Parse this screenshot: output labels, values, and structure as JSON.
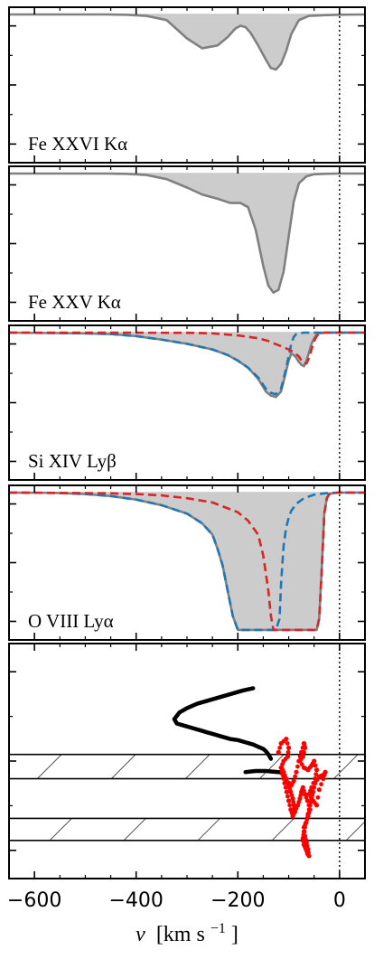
{
  "chart_data": {
    "type": "line",
    "xlabel_var": "v",
    "xlabel_unit": "[km s",
    "xlabel_exp": "−1",
    "xlabel_close": "]",
    "xlim": [
      -650,
      50
    ],
    "xticks": [
      -600,
      -400,
      -200,
      0
    ],
    "xtick_labels": [
      "−600",
      "−400",
      "−200",
      "0"
    ],
    "reference_line_x": 0,
    "colors": {
      "total": "#808080",
      "fill": "#cccccc",
      "red": "#d62728",
      "blue": "#1f77b4",
      "trajectory_black": "#000000",
      "trajectory_red": "#ff0000"
    },
    "panels": [
      {
        "label": "Fe XXVI Kα",
        "ylim": [
          0,
          1
        ],
        "series": [
          {
            "style": "solid-gray",
            "x": [
              -650,
              -520,
              -460,
              -420,
              -380,
              -340,
              -300,
              -270,
              -240,
              -220,
              -205,
              -195,
              -185,
              -175,
              -160,
              -145,
              -135,
              -125,
              -115,
              -105,
              -95,
              -80,
              -60,
              -30,
              0,
              50
            ],
            "y": [
              1,
              1,
              1,
              0.998,
              0.99,
              0.96,
              0.83,
              0.76,
              0.78,
              0.84,
              0.9,
              0.92,
              0.91,
              0.87,
              0.78,
              0.68,
              0.62,
              0.61,
              0.65,
              0.74,
              0.86,
              0.96,
              0.99,
              0.995,
              0.998,
              1
            ]
          }
        ]
      },
      {
        "label": "Fe XXV Kα",
        "ylim": [
          0,
          1
        ],
        "series": [
          {
            "style": "solid-gray",
            "x": [
              -650,
              -460,
              -420,
              -380,
              -340,
              -300,
              -270,
              -240,
              -215,
              -195,
              -180,
              -165,
              -150,
              -140,
              -130,
              -120,
              -110,
              -100,
              -90,
              -80,
              -65,
              -50,
              -30,
              0,
              50
            ],
            "y": [
              1,
              1,
              0.998,
              0.99,
              0.96,
              0.9,
              0.85,
              0.82,
              0.79,
              0.79,
              0.76,
              0.6,
              0.34,
              0.2,
              0.15,
              0.17,
              0.3,
              0.55,
              0.8,
              0.93,
              0.98,
              0.995,
              0.998,
              1,
              1
            ]
          }
        ]
      },
      {
        "label": "Si XIV Lyβ",
        "ylim": [
          0,
          1
        ],
        "series": [
          {
            "style": "solid-gray",
            "x": [
              -650,
              -500,
              -450,
              -400,
              -350,
              -300,
              -250,
              -220,
              -200,
              -180,
              -160,
              -145,
              -135,
              -125,
              -115,
              -108,
              -100,
              -95,
              -90,
              -85,
              -80,
              -75,
              -70,
              -65,
              -60,
              -55,
              -50,
              -45,
              -40,
              -30,
              -15,
              0,
              50
            ],
            "y": [
              1,
              0.995,
              0.99,
              0.975,
              0.95,
              0.92,
              0.88,
              0.84,
              0.8,
              0.75,
              0.67,
              0.58,
              0.55,
              0.54,
              0.58,
              0.68,
              0.8,
              0.85,
              0.84,
              0.82,
              0.79,
              0.77,
              0.76,
              0.8,
              0.86,
              0.92,
              0.96,
              0.985,
              0.995,
              1,
              1,
              1,
              1
            ]
          },
          {
            "style": "dashed-blue",
            "x": [
              -650,
              -500,
              -450,
              -400,
              -350,
              -300,
              -250,
              -220,
              -200,
              -180,
              -160,
              -145,
              -135,
              -125,
              -115,
              -108,
              -100,
              -95,
              -90,
              -85,
              -80,
              -70,
              -50,
              0,
              50
            ],
            "y": [
              1,
              0.995,
              0.99,
              0.975,
              0.95,
              0.92,
              0.88,
              0.84,
              0.8,
              0.75,
              0.68,
              0.6,
              0.57,
              0.56,
              0.6,
              0.7,
              0.83,
              0.92,
              0.97,
              0.99,
              0.995,
              1,
              1,
              1,
              1
            ]
          },
          {
            "style": "dashed-red",
            "x": [
              -650,
              -300,
              -250,
              -200,
              -160,
              -140,
              -120,
              -100,
              -90,
              -80,
              -75,
              -70,
              -65,
              -60,
              -55,
              -50,
              -45,
              -40,
              -30,
              -15,
              0,
              50
            ],
            "y": [
              1,
              0.999,
              0.995,
              0.98,
              0.96,
              0.94,
              0.91,
              0.88,
              0.86,
              0.83,
              0.8,
              0.78,
              0.78,
              0.82,
              0.88,
              0.94,
              0.975,
              0.99,
              1,
              1,
              1,
              1
            ]
          }
        ]
      },
      {
        "label": "O VIII Lyα",
        "ylim": [
          0,
          1
        ],
        "series": [
          {
            "style": "solid-gray",
            "x": [
              -650,
              -560,
              -500,
              -450,
              -400,
              -350,
              -300,
              -270,
              -250,
              -240,
              -230,
              -220,
              -210,
              -200,
              -150,
              -100,
              -60,
              -45,
              -40,
              -35,
              -30,
              -25,
              -20,
              -10,
              0,
              20,
              50
            ],
            "y": [
              1,
              0.998,
              0.99,
              0.975,
              0.95,
              0.91,
              0.85,
              0.78,
              0.7,
              0.6,
              0.48,
              0.3,
              0.12,
              0.02,
              0.02,
              0.02,
              0.02,
              0.02,
              0.1,
              0.45,
              0.85,
              0.96,
              0.99,
              0.998,
              1,
              1,
              1
            ]
          },
          {
            "style": "dashed-blue",
            "x": [
              -650,
              -560,
              -500,
              -450,
              -400,
              -350,
              -300,
              -270,
              -250,
              -240,
              -230,
              -220,
              -210,
              -200,
              -150,
              -125,
              -118,
              -115,
              -110,
              -105,
              -100,
              -95,
              -85,
              -70,
              -50,
              -30,
              0,
              50
            ],
            "y": [
              1,
              0.998,
              0.99,
              0.975,
              0.95,
              0.91,
              0.85,
              0.78,
              0.7,
              0.6,
              0.48,
              0.3,
              0.12,
              0.02,
              0.02,
              0.02,
              0.1,
              0.35,
              0.62,
              0.75,
              0.82,
              0.87,
              0.92,
              0.96,
              0.985,
              0.995,
              1,
              1
            ]
          },
          {
            "style": "dashed-red",
            "x": [
              -650,
              -450,
              -400,
              -350,
              -300,
              -250,
              -200,
              -180,
              -160,
              -150,
              -140,
              -135,
              -130,
              -100,
              -60,
              -45,
              -40,
              -35,
              -30,
              -25,
              -20,
              -10,
              0,
              50
            ],
            "y": [
              1,
              0.995,
              0.99,
              0.98,
              0.96,
              0.93,
              0.86,
              0.8,
              0.7,
              0.55,
              0.3,
              0.12,
              0.02,
              0.02,
              0.02,
              0.02,
              0.1,
              0.45,
              0.85,
              0.96,
              0.99,
              0.998,
              1,
              1
            ]
          }
        ]
      },
      {
        "label": "",
        "ylim": [
          0,
          1
        ],
        "hatched_bands": [
          [
            0.42,
            0.53
          ],
          [
            0.14,
            0.24
          ]
        ],
        "series": [
          {
            "style": "thick-black",
            "x": [
              -170,
              -190,
              -220,
              -250,
              -280,
              -300,
              -315,
              -325,
              -320,
              -305,
              -290,
              -275,
              -260,
              -245,
              -230,
              -215,
              -200,
              -185,
              -170,
              -160,
              -150,
              -145,
              -140,
              -135
            ],
            "y": [
              0.83,
              0.82,
              0.8,
              0.78,
              0.76,
              0.74,
              0.72,
              0.69,
              0.67,
              0.66,
              0.65,
              0.64,
              0.63,
              0.62,
              0.61,
              0.6,
              0.595,
              0.585,
              0.575,
              0.565,
              0.555,
              0.545,
              0.53,
              0.51
            ]
          },
          {
            "style": "thick-black",
            "x": [
              -185,
              -165,
              -145,
              -130,
              -120,
              -110
            ],
            "y": [
              0.45,
              0.455,
              0.455,
              0.452,
              0.45,
              0.448
            ]
          },
          {
            "style": "red-dots",
            "x": [
              -120,
              -115,
              -105,
              -100,
              -102,
              -110,
              -115,
              -110,
              -100,
              -95,
              -90,
              -85,
              -80,
              -75,
              -70,
              -68,
              -72,
              -78,
              -70,
              -62,
              -55,
              -50,
              -45,
              -48,
              -55,
              -60,
              -52,
              -45,
              -40,
              -32,
              -28,
              -30,
              -40,
              -48,
              -52,
              -55,
              -58,
              -62,
              -66,
              -70,
              -72,
              -70,
              -66,
              -63,
              -60,
              -62,
              -65,
              -68,
              -70,
              -66,
              -62,
              -58,
              -63,
              -68,
              -72,
              -75,
              -78,
              -82,
              -88,
              -92,
              -96,
              -100,
              -104,
              -108,
              -112,
              -114,
              -110,
              -105,
              -100,
              -96,
              -92,
              -90,
              -88
            ],
            "y": [
              0.54,
              0.58,
              0.6,
              0.56,
              0.52,
              0.5,
              0.47,
              0.43,
              0.4,
              0.39,
              0.41,
              0.45,
              0.5,
              0.54,
              0.58,
              0.56,
              0.52,
              0.5,
              0.47,
              0.46,
              0.48,
              0.5,
              0.46,
              0.42,
              0.38,
              0.35,
              0.32,
              0.3,
              0.37,
              0.42,
              0.45,
              0.44,
              0.43,
              0.4,
              0.36,
              0.33,
              0.3,
              0.26,
              0.22,
              0.18,
              0.15,
              0.12,
              0.1,
              0.08,
              0.07,
              0.1,
              0.13,
              0.16,
              0.2,
              0.22,
              0.25,
              0.28,
              0.32,
              0.35,
              0.38,
              0.36,
              0.33,
              0.3,
              0.27,
              0.25,
              0.28,
              0.32,
              0.36,
              0.4,
              0.44,
              0.47,
              0.45,
              0.42,
              0.39,
              0.36,
              0.33,
              0.3,
              0.27
            ]
          }
        ]
      }
    ]
  }
}
